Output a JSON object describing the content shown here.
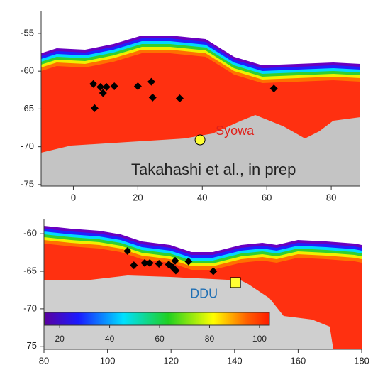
{
  "chart_data": [
    {
      "type": "scatter",
      "xlim": [
        -10,
        89
      ],
      "ylim": [
        -52,
        -75.2
      ],
      "xticks": [
        0,
        20,
        40,
        60,
        80
      ],
      "yticks": [
        -55,
        -60,
        -65,
        -70,
        -75
      ],
      "series": [
        {
          "color": "#000000",
          "x": [
            6.2,
            8.4,
            9.2,
            10.3,
            12.7,
            20,
            24.2,
            24.6,
            33,
            6.6,
            62.2
          ],
          "values": [
            -61.7,
            -62.1,
            -62.9,
            -62.1,
            -62.0,
            -62.0,
            -61.4,
            -63.5,
            -63.6,
            -64.9,
            -62.3
          ]
        }
      ],
      "markers": [
        {
          "label": "Syowa",
          "x": 39.3,
          "y": -69.1,
          "color": "#ffff33",
          "shape": "circle"
        }
      ],
      "annotation": "Takahashi et al., in prep"
    },
    {
      "type": "scatter",
      "xlim": [
        80,
        180
      ],
      "ylim": [
        -58,
        -75.4
      ],
      "xticks": [
        80,
        100,
        120,
        140,
        160,
        180
      ],
      "yticks": [
        -60,
        -65,
        -70,
        -75
      ],
      "series": [
        {
          "color": "#000000",
          "x": [
            106.3,
            108.3,
            111.7,
            113.3,
            116.2,
            119.3,
            120.6,
            121.3,
            121.5,
            125.5,
            133.3
          ],
          "values": [
            -62.3,
            -64.2,
            -63.9,
            -63.9,
            -64.0,
            -64.1,
            -64.5,
            -63.6,
            -64.9,
            -63.7,
            -65.0
          ]
        }
      ],
      "markers": [
        {
          "label": "DDU",
          "x": 140.3,
          "y": -66.5,
          "color": "#ffff33",
          "shape": "square"
        }
      ],
      "colorbar": {
        "lim": [
          14,
          104
        ],
        "ticks": [
          20,
          40,
          60,
          80,
          100
        ]
      }
    }
  ]
}
